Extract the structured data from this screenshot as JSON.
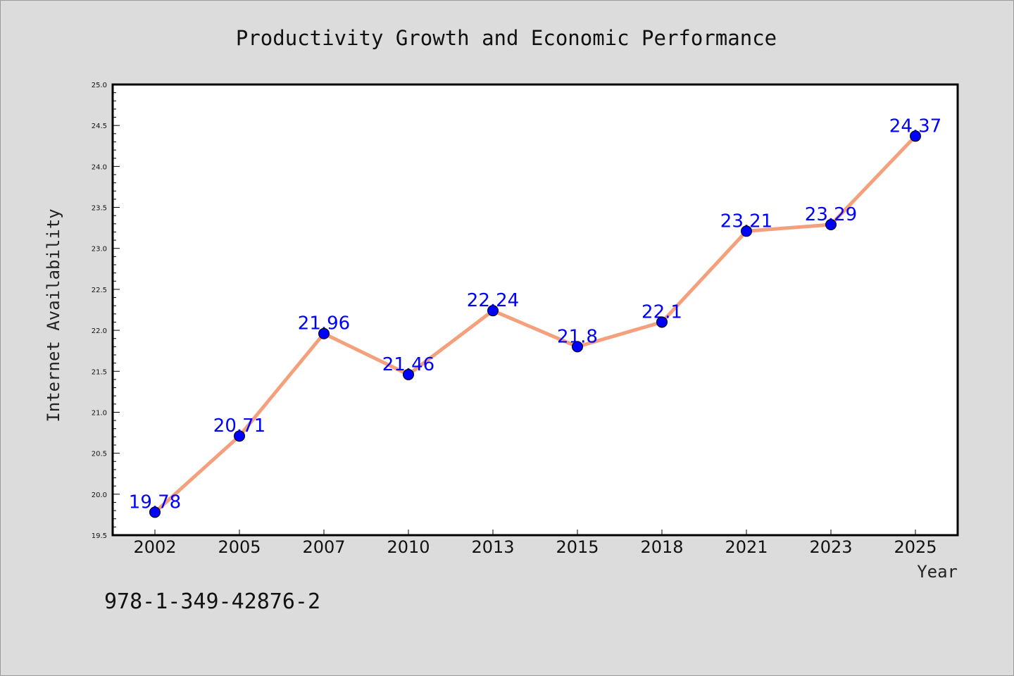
{
  "chart_data": {
    "type": "line",
    "title": "Productivity Growth and Economic Performance",
    "xlabel": "Year",
    "ylabel": "Internet Availability",
    "categories": [
      "2002",
      "2005",
      "2007",
      "2010",
      "2013",
      "2015",
      "2018",
      "2021",
      "2023",
      "2025"
    ],
    "series": [
      {
        "values": [
          19.78,
          20.71,
          21.96,
          21.46,
          22.24,
          21.8,
          22.1,
          23.21,
          23.29,
          24.37
        ],
        "labels": [
          "19.78",
          "20.71",
          "21.96",
          "21.46",
          "22.24",
          "21.8",
          "22.1",
          "23.21",
          "23.29",
          "24.37"
        ],
        "line_color": "#f4a07c",
        "marker_color": "#0000ff"
      }
    ],
    "ylim": [
      19.5,
      25.0
    ],
    "yticks": [
      "19.5",
      "20.0",
      "20.5",
      "21.0",
      "21.5",
      "22.0",
      "22.5",
      "23.0",
      "23.5",
      "24.0",
      "24.5",
      "25.0"
    ],
    "grid": false,
    "background": "#dcdcdc",
    "plot_background": "#ffffff"
  },
  "footer": {
    "isbn": "978-1-349-42876-2"
  }
}
